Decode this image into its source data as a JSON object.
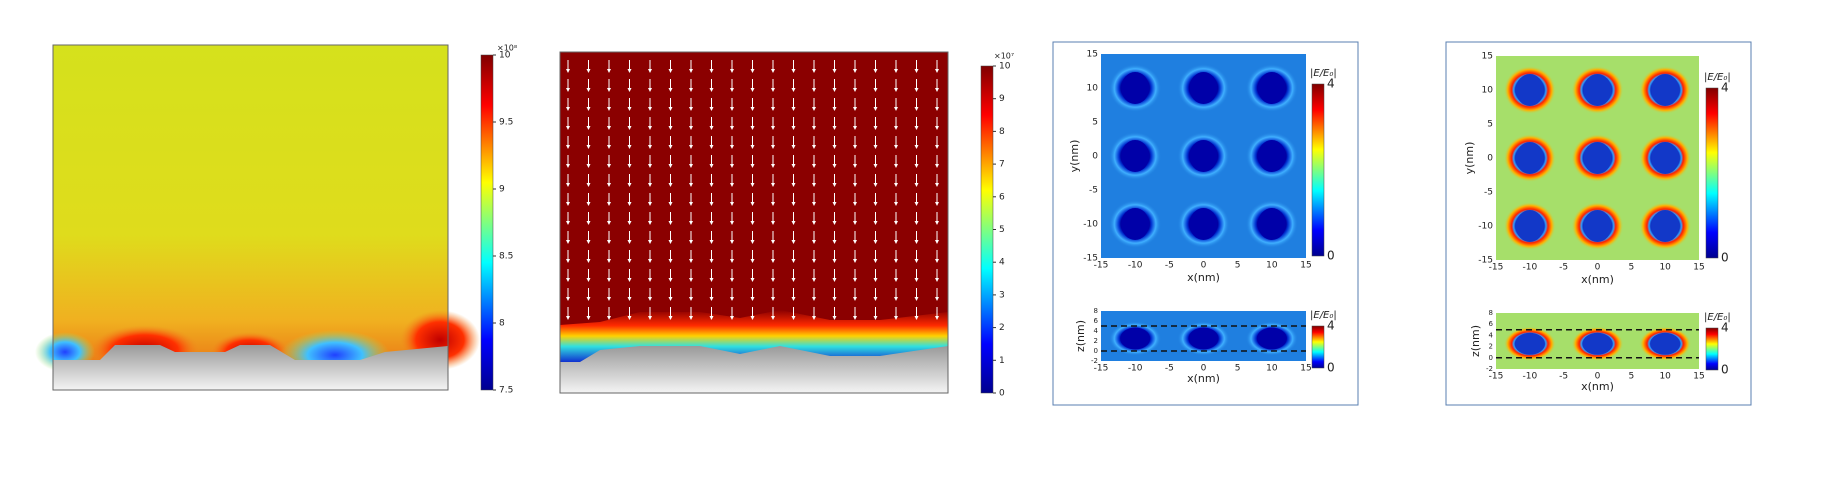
{
  "panels": [
    {
      "colorbar": {
        "exponent_label": "×10⁸",
        "ticks": [
          10,
          9.5,
          9,
          8.5,
          8,
          7.5
        ]
      }
    },
    {
      "colorbar": {
        "exponent_label": "×10⁷",
        "ticks": [
          10,
          9,
          8,
          7,
          6,
          5,
          4,
          3,
          2,
          1,
          0
        ]
      }
    },
    {
      "top": {
        "y_label": "y(nm)",
        "x_label": "x(nm)",
        "xticks": [
          -15,
          -10,
          -5,
          0,
          5,
          10,
          15
        ],
        "yticks": [
          15,
          10,
          5,
          0,
          -5,
          -10,
          -15
        ],
        "colorbar_label": "|E/E₀|",
        "colorbar_ticks": [
          4,
          0
        ]
      },
      "bottom": {
        "y_label": "z(nm)",
        "x_label": "x(nm)",
        "xticks": [
          -15,
          -10,
          -5,
          0,
          5,
          10,
          15
        ],
        "yticks": [
          8,
          6,
          4,
          2,
          0,
          -2
        ],
        "colorbar_label": "|E/E₀|",
        "colorbar_ticks": [
          4,
          0
        ]
      }
    },
    {
      "top": {
        "y_label": "y(nm)",
        "x_label": "x(nm)",
        "xticks": [
          -15,
          -10,
          -5,
          0,
          5,
          10,
          15
        ],
        "yticks": [
          15,
          10,
          5,
          0,
          -5,
          -10,
          -15
        ],
        "colorbar_label": "|E/E₀|",
        "colorbar_ticks": [
          4,
          0
        ]
      },
      "bottom": {
        "y_label": "z(nm)",
        "x_label": "x(nm)",
        "xticks": [
          -15,
          -10,
          -5,
          0,
          5,
          10,
          15
        ],
        "yticks": [
          8,
          6,
          4,
          2,
          0,
          -2
        ],
        "colorbar_label": "|E/E₀|",
        "colorbar_ticks": [
          4,
          0
        ]
      }
    }
  ]
}
